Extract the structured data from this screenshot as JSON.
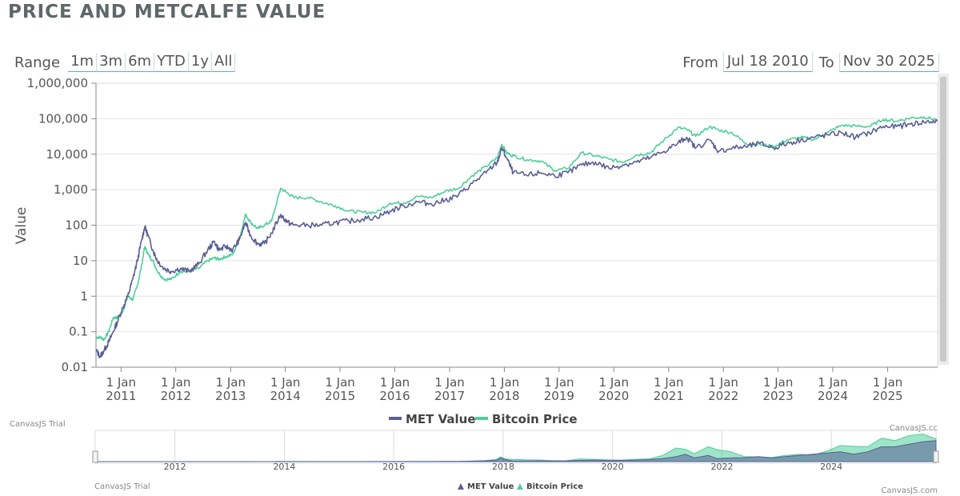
{
  "title": "PRICE AND METCALFE VALUE",
  "range_selector": {
    "label": "Range",
    "buttons": [
      "1m",
      "3m",
      "6m",
      "YTD",
      "1y",
      "All"
    ]
  },
  "date_range": {
    "from_label": "From",
    "from_value": "Jul 18 2010",
    "to_label": "To",
    "to_value": "Nov 30 2025"
  },
  "watermarks": {
    "trial": "CanvasJS Trial",
    "credit": "CanvasJS.com",
    "credit_cut": "CanvasJS.cc"
  },
  "colors": {
    "met": "#5a5f93",
    "price": "#4fcf9a",
    "grid": "#e4e4e4",
    "axis": "#888888",
    "scrollbar": "#e6e6e6",
    "scroll_thumb": "#c4c4c4"
  },
  "chart_data": {
    "type": "line",
    "title": "",
    "xlabel": "",
    "ylabel": "Value",
    "y_scale": "log",
    "ylim": [
      0.01,
      1000000
    ],
    "xlim": [
      "2010-07-18",
      "2025-11-30"
    ],
    "y_ticks": [
      "0.01",
      "0.1",
      "1",
      "10",
      "100",
      "1,000",
      "10,000",
      "100,000",
      "1,000,000"
    ],
    "x_ticks": [
      {
        "date": "2011-01-01",
        "line1": "1 Jan",
        "line2": "2011"
      },
      {
        "date": "2012-01-01",
        "line1": "1 Jan",
        "line2": "2012"
      },
      {
        "date": "2013-01-01",
        "line1": "1 Jan",
        "line2": "2013"
      },
      {
        "date": "2014-01-01",
        "line1": "1 Jan",
        "line2": "2014"
      },
      {
        "date": "2015-01-01",
        "line1": "1 Jan",
        "line2": "2015"
      },
      {
        "date": "2016-01-01",
        "line1": "1 Jan",
        "line2": "2016"
      },
      {
        "date": "2017-01-01",
        "line1": "1 Jan",
        "line2": "2017"
      },
      {
        "date": "2018-01-01",
        "line1": "1 Jan",
        "line2": "2018"
      },
      {
        "date": "2019-01-01",
        "line1": "1 Jan",
        "line2": "2019"
      },
      {
        "date": "2020-01-01",
        "line1": "1 Jan",
        "line2": "2020"
      },
      {
        "date": "2021-01-01",
        "line1": "1 Jan",
        "line2": "2021"
      },
      {
        "date": "2022-01-01",
        "line1": "1 Jan",
        "line2": "2022"
      },
      {
        "date": "2023-01-01",
        "line1": "1 Jan",
        "line2": "2023"
      },
      {
        "date": "2024-01-01",
        "line1": "1 Jan",
        "line2": "2024"
      },
      {
        "date": "2025-01-01",
        "line1": "1 Jan",
        "line2": "2025"
      }
    ],
    "legend": {
      "placement": "bottom"
    },
    "navigator": {
      "type": "area",
      "labels": [
        "2012",
        "2014",
        "2016",
        "2018",
        "2020",
        "2022",
        "2024"
      ],
      "grid_years": [
        "2012",
        "2014",
        "2016",
        "2018",
        "2020",
        "2022",
        "2024"
      ]
    },
    "series": [
      {
        "name": "MET Value",
        "color": "#5a5f93",
        "points": [
          [
            "2010-07-18",
            0.03
          ],
          [
            "2010-08-15",
            0.02
          ],
          [
            "2010-09-10",
            0.03
          ],
          [
            "2010-10-10",
            0.05
          ],
          [
            "2010-11-10",
            0.1
          ],
          [
            "2010-12-10",
            0.2
          ],
          [
            "2011-01-15",
            0.5
          ],
          [
            "2011-02-15",
            1
          ],
          [
            "2011-03-20",
            3
          ],
          [
            "2011-04-20",
            10
          ],
          [
            "2011-05-20",
            40
          ],
          [
            "2011-06-08",
            90
          ],
          [
            "2011-07-01",
            50
          ],
          [
            "2011-08-01",
            20
          ],
          [
            "2011-09-01",
            10
          ],
          [
            "2011-10-15",
            6
          ],
          [
            "2011-12-01",
            5
          ],
          [
            "2012-02-01",
            6
          ],
          [
            "2012-04-01",
            5
          ],
          [
            "2012-06-01",
            8
          ],
          [
            "2012-08-01",
            20
          ],
          [
            "2012-09-15",
            35
          ],
          [
            "2012-10-15",
            20
          ],
          [
            "2012-12-01",
            25
          ],
          [
            "2013-01-15",
            20
          ],
          [
            "2013-03-01",
            40
          ],
          [
            "2013-04-10",
            120
          ],
          [
            "2013-05-15",
            50
          ],
          [
            "2013-07-01",
            30
          ],
          [
            "2013-08-15",
            30
          ],
          [
            "2013-10-01",
            60
          ],
          [
            "2013-12-01",
            200
          ],
          [
            "2014-01-15",
            120
          ],
          [
            "2014-03-01",
            100
          ],
          [
            "2014-06-01",
            100
          ],
          [
            "2014-09-01",
            100
          ],
          [
            "2014-12-01",
            120
          ],
          [
            "2015-03-01",
            130
          ],
          [
            "2015-06-01",
            150
          ],
          [
            "2015-09-01",
            170
          ],
          [
            "2015-12-01",
            250
          ],
          [
            "2016-03-01",
            350
          ],
          [
            "2016-06-01",
            450
          ],
          [
            "2016-09-01",
            400
          ],
          [
            "2016-12-01",
            500
          ],
          [
            "2017-03-01",
            700
          ],
          [
            "2017-06-01",
            1500
          ],
          [
            "2017-09-01",
            3000
          ],
          [
            "2017-11-15",
            6000
          ],
          [
            "2017-12-15",
            15000
          ],
          [
            "2018-01-15",
            8000
          ],
          [
            "2018-03-01",
            3000
          ],
          [
            "2018-06-01",
            2500
          ],
          [
            "2018-09-01",
            3000
          ],
          [
            "2018-12-01",
            2500
          ],
          [
            "2019-03-01",
            3000
          ],
          [
            "2019-06-01",
            5000
          ],
          [
            "2019-09-01",
            6000
          ],
          [
            "2019-12-01",
            4000
          ],
          [
            "2020-03-01",
            5000
          ],
          [
            "2020-06-01",
            6000
          ],
          [
            "2020-09-01",
            8000
          ],
          [
            "2020-12-01",
            12000
          ],
          [
            "2021-03-01",
            20000
          ],
          [
            "2021-05-01",
            30000
          ],
          [
            "2021-07-01",
            15000
          ],
          [
            "2021-10-01",
            25000
          ],
          [
            "2021-12-01",
            12000
          ],
          [
            "2022-03-01",
            15000
          ],
          [
            "2022-06-01",
            16000
          ],
          [
            "2022-09-01",
            20000
          ],
          [
            "2022-12-01",
            15000
          ],
          [
            "2023-03-01",
            20000
          ],
          [
            "2023-06-01",
            25000
          ],
          [
            "2023-09-01",
            30000
          ],
          [
            "2023-12-01",
            35000
          ],
          [
            "2024-03-01",
            40000
          ],
          [
            "2024-06-01",
            30000
          ],
          [
            "2024-09-01",
            40000
          ],
          [
            "2024-12-01",
            60000
          ],
          [
            "2025-03-01",
            60000
          ],
          [
            "2025-06-01",
            70000
          ],
          [
            "2025-09-01",
            80000
          ],
          [
            "2025-11-30",
            85000
          ]
        ]
      },
      {
        "name": "Bitcoin Price",
        "color": "#4fcf9a",
        "points": [
          [
            "2010-07-18",
            0.07
          ],
          [
            "2010-08-15",
            0.07
          ],
          [
            "2010-09-10",
            0.06
          ],
          [
            "2010-10-10",
            0.1
          ],
          [
            "2010-11-10",
            0.25
          ],
          [
            "2010-12-10",
            0.25
          ],
          [
            "2011-01-15",
            0.4
          ],
          [
            "2011-02-15",
            1
          ],
          [
            "2011-03-20",
            0.8
          ],
          [
            "2011-04-20",
            2
          ],
          [
            "2011-05-20",
            8
          ],
          [
            "2011-06-08",
            25
          ],
          [
            "2011-07-01",
            15
          ],
          [
            "2011-08-01",
            10
          ],
          [
            "2011-09-01",
            5
          ],
          [
            "2011-10-15",
            3
          ],
          [
            "2011-12-01",
            3
          ],
          [
            "2012-02-01",
            5
          ],
          [
            "2012-04-01",
            5
          ],
          [
            "2012-06-01",
            6
          ],
          [
            "2012-08-01",
            10
          ],
          [
            "2012-09-15",
            12
          ],
          [
            "2012-10-15",
            11
          ],
          [
            "2012-12-01",
            13
          ],
          [
            "2013-01-15",
            15
          ],
          [
            "2013-03-01",
            40
          ],
          [
            "2013-04-10",
            200
          ],
          [
            "2013-05-15",
            120
          ],
          [
            "2013-07-01",
            80
          ],
          [
            "2013-08-15",
            100
          ],
          [
            "2013-10-01",
            130
          ],
          [
            "2013-12-01",
            1100
          ],
          [
            "2014-01-15",
            800
          ],
          [
            "2014-03-01",
            600
          ],
          [
            "2014-06-01",
            600
          ],
          [
            "2014-09-01",
            450
          ],
          [
            "2014-12-01",
            350
          ],
          [
            "2015-03-01",
            250
          ],
          [
            "2015-06-01",
            230
          ],
          [
            "2015-09-01",
            230
          ],
          [
            "2015-12-01",
            420
          ],
          [
            "2016-03-01",
            420
          ],
          [
            "2016-06-01",
            650
          ],
          [
            "2016-09-01",
            600
          ],
          [
            "2016-12-01",
            900
          ],
          [
            "2017-03-01",
            1100
          ],
          [
            "2017-06-01",
            2500
          ],
          [
            "2017-09-01",
            4500
          ],
          [
            "2017-11-15",
            8000
          ],
          [
            "2017-12-15",
            19000
          ],
          [
            "2018-01-15",
            11000
          ],
          [
            "2018-03-01",
            9000
          ],
          [
            "2018-06-01",
            7000
          ],
          [
            "2018-09-01",
            6500
          ],
          [
            "2018-12-01",
            3500
          ],
          [
            "2019-03-01",
            4000
          ],
          [
            "2019-06-01",
            11000
          ],
          [
            "2019-09-01",
            9000
          ],
          [
            "2019-12-01",
            7200
          ],
          [
            "2020-03-01",
            6000
          ],
          [
            "2020-06-01",
            9500
          ],
          [
            "2020-09-01",
            11000
          ],
          [
            "2020-12-01",
            25000
          ],
          [
            "2021-03-01",
            55000
          ],
          [
            "2021-05-01",
            50000
          ],
          [
            "2021-07-01",
            32000
          ],
          [
            "2021-10-01",
            60000
          ],
          [
            "2021-12-01",
            48000
          ],
          [
            "2022-03-01",
            40000
          ],
          [
            "2022-06-01",
            20000
          ],
          [
            "2022-09-01",
            19000
          ],
          [
            "2022-12-01",
            16500
          ],
          [
            "2023-03-01",
            25000
          ],
          [
            "2023-06-01",
            30000
          ],
          [
            "2023-09-01",
            26000
          ],
          [
            "2023-12-01",
            42000
          ],
          [
            "2024-03-01",
            65000
          ],
          [
            "2024-06-01",
            62000
          ],
          [
            "2024-09-01",
            60000
          ],
          [
            "2024-12-01",
            95000
          ],
          [
            "2025-03-01",
            85000
          ],
          [
            "2025-06-01",
            105000
          ],
          [
            "2025-09-01",
            112000
          ],
          [
            "2025-11-30",
            92000
          ]
        ]
      }
    ]
  }
}
